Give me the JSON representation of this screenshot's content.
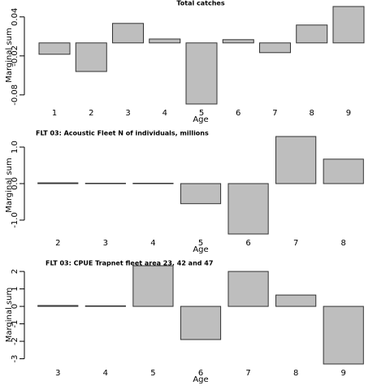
{
  "chart_data": [
    {
      "type": "bar",
      "title": "Total catches",
      "x_label": "Age",
      "y_label": "Marginal sum",
      "categories": [
        "1",
        "2",
        "3",
        "4",
        "5",
        "6",
        "7",
        "8",
        "9"
      ],
      "values": [
        -0.0175,
        -0.044,
        0.03,
        0.006,
        -0.094,
        0.005,
        -0.015,
        0.0275,
        0.056
      ],
      "color": "#bebebe",
      "ylim": [
        -0.094,
        0.056
      ],
      "yticks": [
        0.04,
        -0.02,
        -0.08
      ]
    },
    {
      "type": "bar",
      "title": "FLT 03: Acoustic Fleet   N of individuals, millions",
      "x_label": "Age",
      "y_label": "Marginal sum",
      "categories": [
        "2",
        "3",
        "4",
        "5",
        "6",
        "7",
        "8"
      ],
      "values": [
        0.02,
        0.01,
        0.01,
        -0.55,
        -1.38,
        1.29,
        0.67
      ],
      "color": "#bebebe",
      "ylim": [
        -1.38,
        1.29
      ],
      "yticks": [
        {
          "value": 1,
          "label": "1.0"
        },
        {
          "value": 0,
          "label": "0.0"
        },
        {
          "value": -1,
          "label": "-1.0"
        }
      ]
    },
    {
      "type": "bar",
      "title": "FLT 03: CPUE Trapnet fleet area 23, 42 and 47",
      "x_label": "Age",
      "y_label": "Marginal sum",
      "categories": [
        "3",
        "4",
        "5",
        "6",
        "7",
        "8",
        "9"
      ],
      "values": [
        0.05,
        0.03,
        2.33,
        -1.9,
        2.0,
        0.65,
        -3.3
      ],
      "color": "#bebebe",
      "ylim": [
        -3.3,
        2.33
      ],
      "yticks": [
        2,
        1,
        0,
        -1,
        -2,
        -3
      ]
    }
  ]
}
